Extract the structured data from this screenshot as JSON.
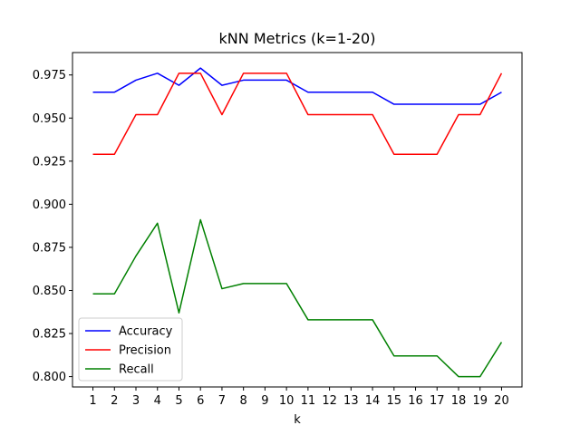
{
  "chart_data": {
    "type": "line",
    "title": "kNN Metrics (k=1-20)",
    "xlabel": "k",
    "ylabel": "",
    "x": [
      1,
      2,
      3,
      4,
      5,
      6,
      7,
      8,
      9,
      10,
      11,
      12,
      13,
      14,
      15,
      16,
      17,
      18,
      19,
      20
    ],
    "xticks": [
      "1",
      "2",
      "3",
      "4",
      "5",
      "6",
      "7",
      "8",
      "9",
      "10",
      "11",
      "12",
      "13",
      "14",
      "15",
      "16",
      "17",
      "18",
      "19",
      "20"
    ],
    "yticks": [
      "0.800",
      "0.825",
      "0.850",
      "0.875",
      "0.900",
      "0.925",
      "0.950",
      "0.975"
    ],
    "ylim": [
      0.794,
      0.988
    ],
    "xlim": [
      0.05,
      20.95
    ],
    "grid": false,
    "legend_position": "lower-left",
    "series": [
      {
        "name": "Accuracy",
        "color": "#0000ff",
        "values": [
          0.965,
          0.965,
          0.972,
          0.976,
          0.969,
          0.979,
          0.969,
          0.972,
          0.972,
          0.972,
          0.965,
          0.965,
          0.965,
          0.965,
          0.958,
          0.958,
          0.958,
          0.958,
          0.958,
          0.965
        ]
      },
      {
        "name": "Precision",
        "color": "#ff0000",
        "values": [
          0.929,
          0.929,
          0.952,
          0.952,
          0.976,
          0.976,
          0.952,
          0.976,
          0.976,
          0.976,
          0.952,
          0.952,
          0.952,
          0.952,
          0.929,
          0.929,
          0.929,
          0.952,
          0.952,
          0.976
        ]
      },
      {
        "name": "Recall",
        "color": "#008000",
        "values": [
          0.848,
          0.848,
          0.87,
          0.889,
          0.837,
          0.891,
          0.851,
          0.854,
          0.854,
          0.854,
          0.833,
          0.833,
          0.833,
          0.833,
          0.812,
          0.812,
          0.812,
          0.8,
          0.8,
          0.82
        ]
      }
    ]
  }
}
